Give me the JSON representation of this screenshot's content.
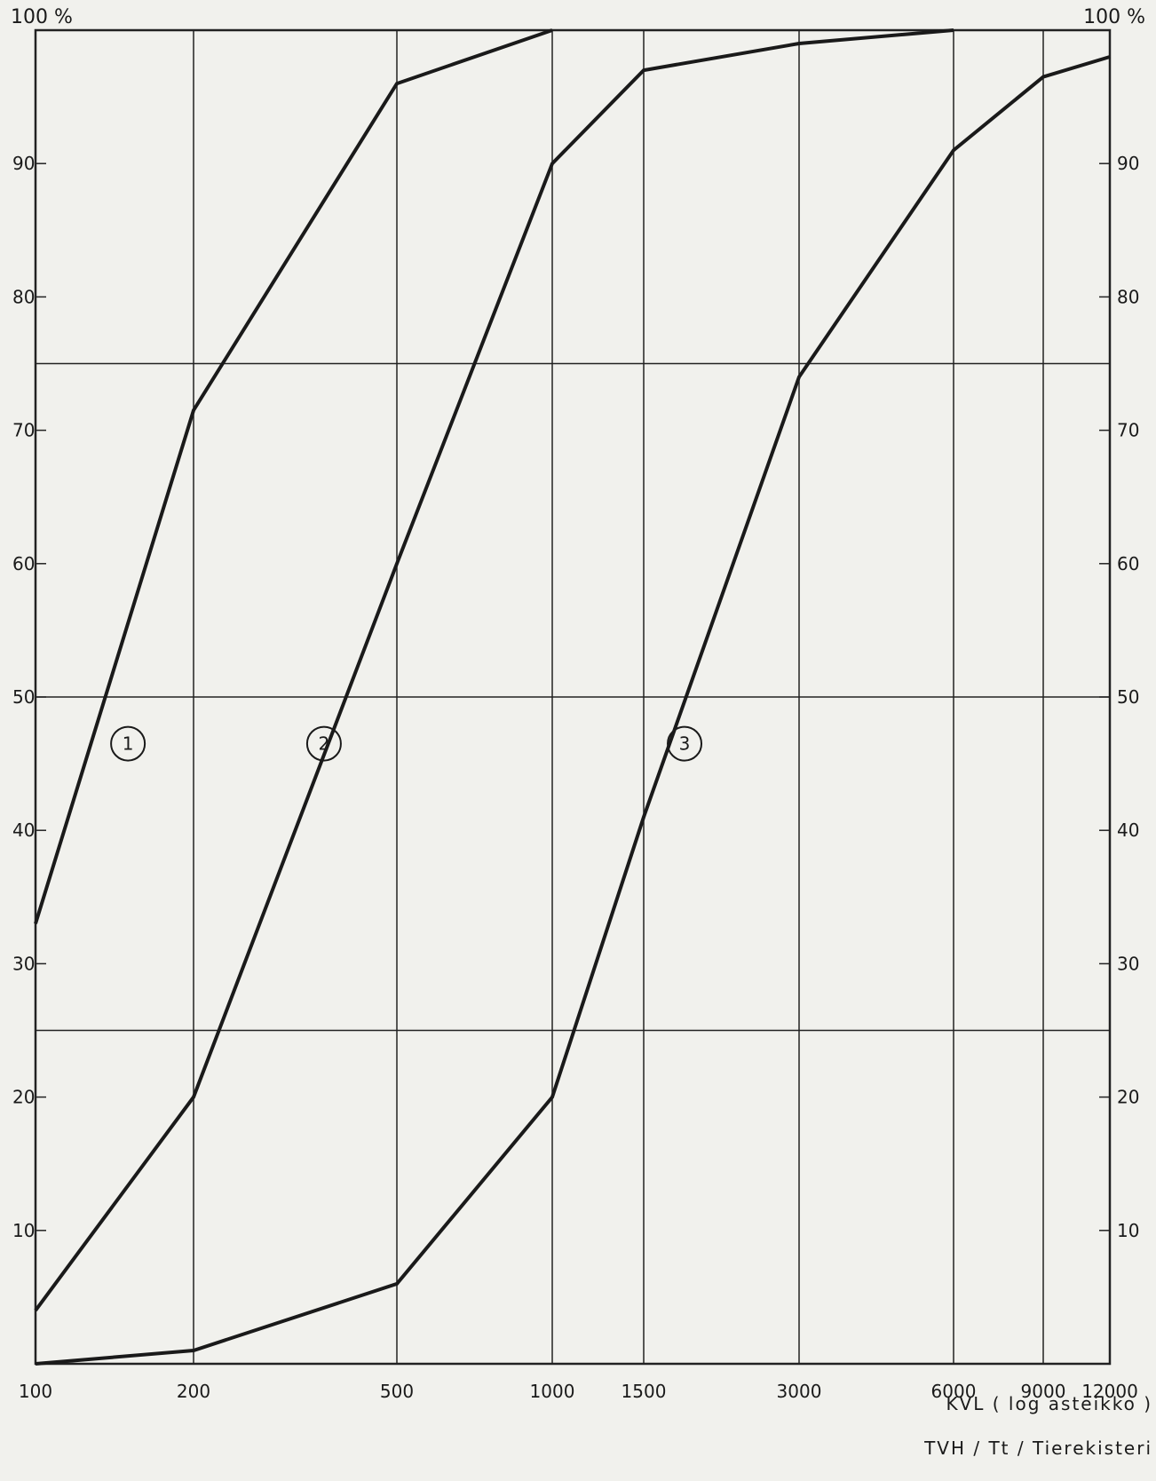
{
  "chart_data": {
    "type": "line",
    "title": "",
    "x_axis": {
      "label": "KVL ( log asteikko )",
      "scale": "log",
      "ticks": [
        100,
        200,
        500,
        1000,
        1500,
        3000,
        6000,
        9000,
        12000
      ],
      "tick_labels": [
        "100",
        "200",
        "500",
        "1000",
        "1500",
        "3000",
        "6000",
        "9000",
        "12000"
      ],
      "range": [
        100,
        12000
      ]
    },
    "y_axis": {
      "top_label_left": "100 %",
      "top_label_right": "100 %",
      "range": [
        0,
        100
      ],
      "ticks": [
        10,
        20,
        30,
        40,
        50,
        60,
        70,
        80,
        90
      ],
      "tick_labels": [
        "10",
        "20",
        "30",
        "40",
        "50",
        "60",
        "70",
        "80",
        "90"
      ]
    },
    "grid": {
      "vertical_at_ticks": true,
      "horizontal_at": [
        25,
        50,
        75,
        100
      ]
    },
    "series": [
      {
        "marker": "1",
        "x": [
          100,
          200,
          500,
          1000
        ],
        "y": [
          33,
          71.5,
          96,
          100
        ],
        "label_at": [
          150,
          46.5
        ]
      },
      {
        "marker": "2",
        "x": [
          100,
          200,
          500,
          1000,
          1500,
          3000,
          6000
        ],
        "y": [
          4,
          20,
          60,
          90,
          97,
          99,
          100
        ],
        "label_at": [
          360,
          46.5
        ]
      },
      {
        "marker": "3",
        "x": [
          100,
          200,
          500,
          1000,
          1500,
          3000,
          6000,
          9000,
          12000
        ],
        "y": [
          0,
          1,
          6,
          20,
          41,
          74,
          91,
          96.5,
          98
        ],
        "label_at": [
          1800,
          46.5
        ]
      }
    ],
    "footer": "TVH / Tt / Tierekisteri",
    "line_color": "#1a1a1a",
    "grid_color": "#222222",
    "background_color": "#f1f1ed"
  }
}
